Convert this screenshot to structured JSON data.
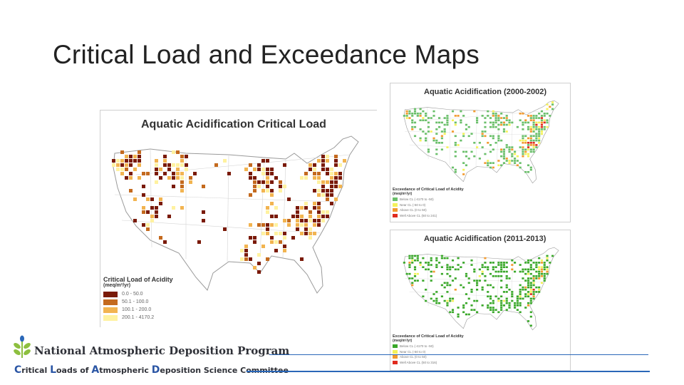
{
  "slide": {
    "title": "Critical Load and Exceedance Maps"
  },
  "maps": {
    "critical_load": {
      "title": "Aquatic Acidification Critical Load",
      "legend": {
        "title": "Critical Load of Acidity",
        "units": "(meq/m²/yr)",
        "items": [
          {
            "label": "0.0 - 50.0",
            "color": "#7a1a08"
          },
          {
            "label": "50.1 - 100.0",
            "color": "#c46a1e"
          },
          {
            "label": "100.1 - 200.0",
            "color": "#f2b450"
          },
          {
            "label": "200.1 - 4170.2",
            "color": "#fff2a0"
          }
        ]
      }
    },
    "exceedance_2000": {
      "title": "Aquatic Acidification (2000-2002)",
      "legend": {
        "title": "Exceedance of Critical Load of Acidity",
        "units": "(meq/m²/yr)",
        "items": [
          {
            "label": "Below CL (-4170 to -50)",
            "color": "#6abf6a"
          },
          {
            "label": "Near CL (-50 to 0)",
            "color": "#f4f25a"
          },
          {
            "label": "Above CL (0 to 50)",
            "color": "#f29a2e"
          },
          {
            "label": "Well Above CL (50 to 241)",
            "color": "#e02b1f"
          }
        ]
      }
    },
    "exceedance_2011": {
      "title": "Aquatic Acidification (2011-2013)",
      "legend": {
        "title": "Exceedance of Critical Load of Acidity",
        "units": "(meq/m²/yr)",
        "items": [
          {
            "label": "Below CL (-4170 to -50)",
            "color": "#3aa82a"
          },
          {
            "label": "Near CL (-50 to 0)",
            "color": "#f4f25a"
          },
          {
            "label": "Above CL (0 to 50)",
            "color": "#f29a2e"
          },
          {
            "label": "Well Above CL (50 to 316)",
            "color": "#e02b1f"
          }
        ]
      }
    }
  },
  "footer": {
    "program_name": "National Atmospheric Deposition Program",
    "committee": {
      "c1": "C",
      "w1": "ritical ",
      "c2": "L",
      "w2": "oads of ",
      "c3": "A",
      "w3": "tmospheric ",
      "c4": "D",
      "w4": "eposition Science Committee"
    },
    "brand_colors": {
      "blue": "#2a67b8",
      "green": "#8dbf3f"
    }
  }
}
